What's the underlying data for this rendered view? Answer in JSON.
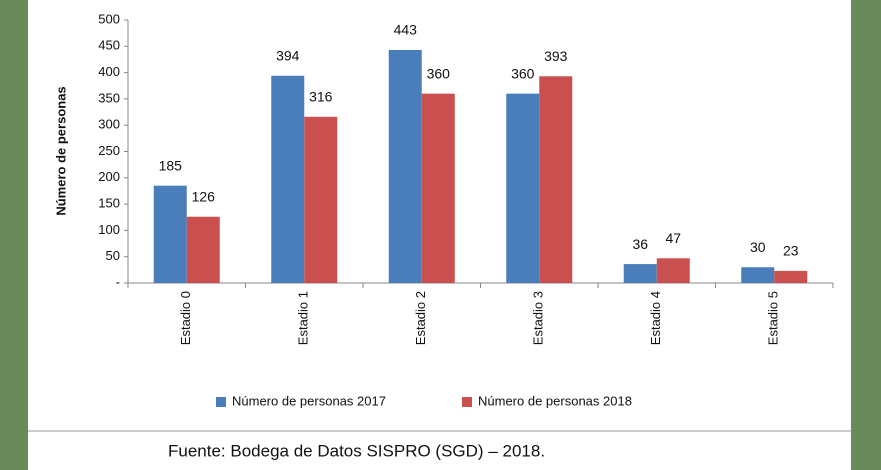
{
  "chart_data": {
    "type": "bar",
    "y_label": "Número de personas",
    "categories": [
      "Estadio 0",
      "Estadio 1",
      "Estadio 2",
      "Estadio 3",
      "Estadio 4",
      "Estadio 5"
    ],
    "series": [
      {
        "name": "Número de personas 2017",
        "color": "#4a7ebb",
        "values": [
          185,
          394,
          443,
          360,
          36,
          30
        ]
      },
      {
        "name": "Número de personas 2018",
        "color": "#c9504f",
        "values": [
          126,
          316,
          360,
          393,
          47,
          23
        ]
      }
    ],
    "ylim": [
      0,
      500
    ],
    "yticks": [
      {
        "value": 0,
        "label": "-"
      },
      50,
      100,
      150,
      200,
      250,
      300,
      350,
      400,
      450,
      500
    ],
    "legend": "bottom",
    "source": "Fuente: Bodega de Datos SISPRO (SGD) – 2018."
  }
}
